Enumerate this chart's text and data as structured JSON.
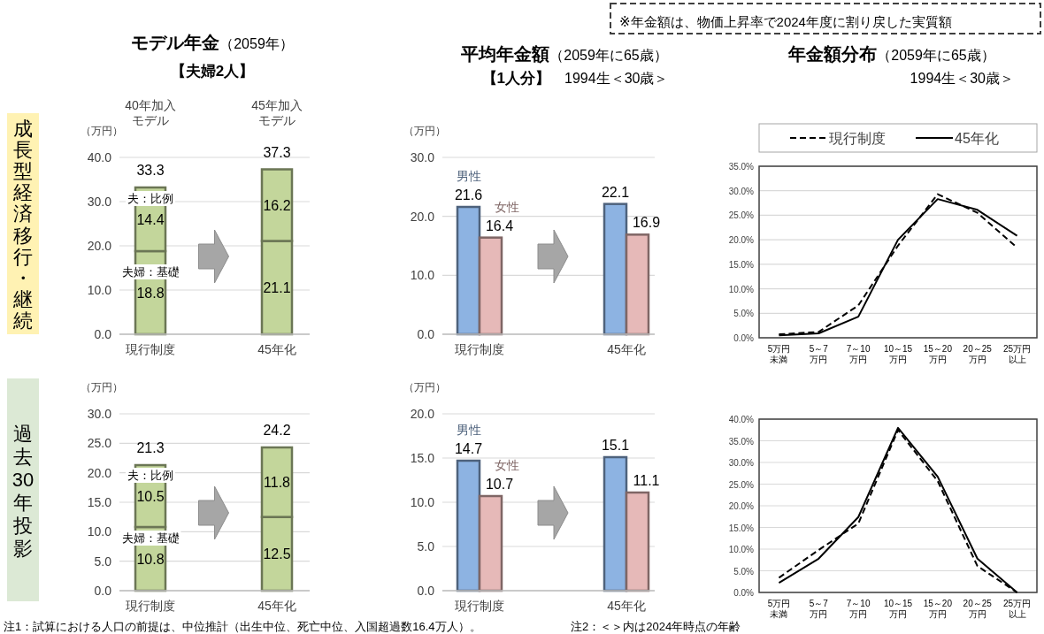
{
  "chart_data": [
    {
      "type": "bar",
      "stacked": true,
      "title": "**モデル年金**（2059年）",
      "subtitle": "**【夫婦2人】**",
      "ylabel": "（万円）",
      "categories": [
        "現行制度",
        "45年化"
      ],
      "series": [
        {
          "name": "夫婦：基礎",
          "color": "#c3d69b",
          "values": [
            18.8,
            21.1
          ]
        },
        {
          "name": "夫：比例",
          "color": "#c3d69b",
          "values": [
            14.4,
            16.2
          ]
        }
      ],
      "data_labels": true,
      "totals": [
        "33.3",
        "37.3"
      ],
      "ylim": [
        0,
        40
      ],
      "yticks": [
        {
          "value": 0,
          "label": "0.0"
        },
        {
          "value": 10,
          "label": "10.0"
        },
        {
          "value": 20,
          "label": "20.0"
        },
        {
          "value": 30,
          "label": "30.0"
        },
        {
          "value": 40,
          "label": "40.0"
        }
      ],
      "grid": "y",
      "annotations": [
        "40年加入モデル",
        "45年加入モデル",
        "成長型経済移行・継続"
      ]
    },
    {
      "type": "bar",
      "title": "**平均年金額**（2059年に65歳）",
      "subtitle": "**【1人分】**　1994生＜30歳＞",
      "ylabel": "（万円）",
      "categories": [
        "現行制度",
        "45年化"
      ],
      "series": [
        {
          "name": "男性",
          "color": "#8db3e2",
          "values": [
            21.6,
            22.1
          ]
        },
        {
          "name": "女性",
          "color": "#e6b9b8",
          "values": [
            16.4,
            16.9
          ]
        }
      ],
      "data_labels": true,
      "ylim": [
        0,
        30
      ],
      "yticks": [
        {
          "value": 0,
          "label": "0.0"
        },
        {
          "value": 10,
          "label": "10.0"
        },
        {
          "value": 20,
          "label": "20.0"
        },
        {
          "value": 30,
          "label": "30.0"
        }
      ],
      "grid": "y"
    },
    {
      "type": "line",
      "title": "**年金額分布**（2059年に65歳）",
      "subtitle": "1994生＜30歳＞",
      "categories": [
        "5万円未満",
        "5～7\n万円",
        "7～10\n万円",
        "10～15\n万円",
        "15～20\n万円",
        "20～25\n万円",
        "25万円以上"
      ],
      "series": [
        {
          "name": "現行制度",
          "color": "#000000",
          "line_style": "dashed",
          "values": [
            0.7,
            1.2,
            6.6,
            18.8,
            29.3,
            25.5,
            18.4
          ]
        },
        {
          "name": "45年化",
          "color": "#000000",
          "line_style": "solid",
          "values": [
            0.5,
            0.9,
            4.3,
            20.0,
            28.3,
            26.1,
            20.8
          ]
        }
      ],
      "ylim": [
        0,
        35
      ],
      "yticks": [
        {
          "value": 0,
          "label": "0.0%"
        },
        {
          "value": 5,
          "label": "5.0%"
        },
        {
          "value": 10,
          "label": "10.0%"
        },
        {
          "value": 15,
          "label": "15.0%"
        },
        {
          "value": 20,
          "label": "20.0%"
        },
        {
          "value": 25,
          "label": "25.0%"
        },
        {
          "value": 30,
          "label": "30.0%"
        },
        {
          "value": 35,
          "label": "35.0%"
        }
      ],
      "grid": "y",
      "legend": "top",
      "marker": "none",
      "annotations": [
        "※年金額は、物価上昇率で2024年度に割り戻した実質額"
      ]
    },
    {
      "type": "bar",
      "stacked": true,
      "ylabel": "（万円）",
      "categories": [
        "現行制度",
        "45年化"
      ],
      "series": [
        {
          "name": "夫婦：基礎",
          "color": "#c3d69b",
          "values": [
            10.8,
            12.5
          ]
        },
        {
          "name": "夫：比例",
          "color": "#c3d69b",
          "values": [
            10.5,
            11.8
          ]
        }
      ],
      "data_labels": true,
      "totals": [
        "21.3",
        "24.2"
      ],
      "ylim": [
        0,
        30
      ],
      "yticks": [
        {
          "value": 0,
          "label": "0.0"
        },
        {
          "value": 5,
          "label": "5.0"
        },
        {
          "value": 10,
          "label": "10.0"
        },
        {
          "value": 15,
          "label": "15.0"
        },
        {
          "value": 20,
          "label": "20.0"
        },
        {
          "value": 25,
          "label": "25.0"
        },
        {
          "value": 30,
          "label": "30.0"
        }
      ],
      "grid": "y",
      "annotations": [
        "過去30年投影",
        "注1：試算における人口の前提は、中位推計（出生中位、死亡中位、入国超過数16.4万人）。",
        "注2：＜＞内は2024年時点の年齢"
      ]
    },
    {
      "type": "bar",
      "ylabel": "（万円）",
      "categories": [
        "現行制度",
        "45年化"
      ],
      "series": [
        {
          "name": "男性",
          "color": "#8db3e2",
          "values": [
            14.7,
            15.1
          ]
        },
        {
          "name": "女性",
          "color": "#e6b9b8",
          "values": [
            10.7,
            11.1
          ]
        }
      ],
      "data_labels": true,
      "ylim": [
        0,
        20
      ],
      "yticks": [
        {
          "value": 0,
          "label": "0.0"
        },
        {
          "value": 5,
          "label": "5.0"
        },
        {
          "value": 10,
          "label": "10.0"
        },
        {
          "value": 15,
          "label": "15.0"
        },
        {
          "value": 20,
          "label": "20.0"
        }
      ],
      "grid": "y"
    },
    {
      "type": "line",
      "categories": [
        "5万円未満",
        "5～7\n万円",
        "7～10\n万円",
        "10～15\n万円",
        "15～20\n万円",
        "20～25\n万円",
        "25万円以上"
      ],
      "series": [
        {
          "color": "#000000",
          "line_style": "dashed",
          "values": [
            3.4,
            9.8,
            15.9,
            37.5,
            25.7,
            6.1,
            0
          ]
        },
        {
          "color": "#000000",
          "line_style": "solid",
          "values": [
            2.2,
            7.8,
            17.4,
            38.0,
            26.7,
            7.8,
            0
          ]
        }
      ],
      "ylim": [
        0,
        40
      ],
      "yticks": [
        {
          "value": 0,
          "label": "0.0%"
        },
        {
          "value": 5,
          "label": "5.0%"
        },
        {
          "value": 10,
          "label": "10.0%"
        },
        {
          "value": 15,
          "label": "15.0%"
        },
        {
          "value": 20,
          "label": "20.0%"
        },
        {
          "value": 25,
          "label": "25.0%"
        },
        {
          "value": 30,
          "label": "30.0%"
        },
        {
          "value": 35,
          "label": "35.0%"
        },
        {
          "value": 40,
          "label": "40.0%"
        }
      ],
      "grid": "y",
      "marker": "none"
    }
  ]
}
